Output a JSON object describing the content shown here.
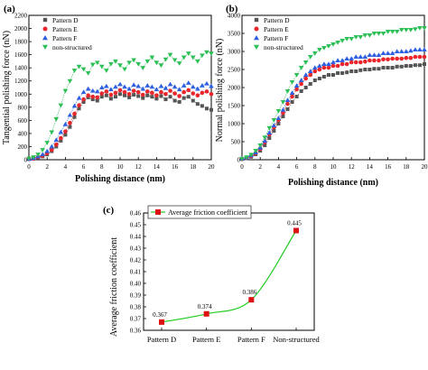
{
  "figure": {
    "panel_labels": [
      "(a)",
      "(b)",
      "(c)"
    ]
  },
  "chart_data": [
    {
      "type": "scatter",
      "panel": "(a)",
      "xlabel": "Polishing distance (nm)",
      "ylabel": "Tangential polishing force (nN)",
      "xlim": [
        0,
        20
      ],
      "ylim": [
        0,
        2200
      ],
      "xticks": [
        0,
        2,
        4,
        6,
        8,
        10,
        12,
        14,
        16,
        18,
        20
      ],
      "yticks": [
        0,
        200,
        400,
        600,
        800,
        1000,
        1200,
        1400,
        1600,
        1800,
        2000,
        2200
      ],
      "legend": "top-left",
      "series": [
        {
          "name": "Pattern D",
          "color": "#555555",
          "marker": "square",
          "x": [
            0,
            0.5,
            1,
            1.5,
            2,
            2.5,
            3,
            3.5,
            4,
            4.5,
            5,
            5.5,
            6,
            6.5,
            7,
            7.5,
            8,
            8.5,
            9,
            9.5,
            10,
            10.5,
            11,
            11.5,
            12,
            12.5,
            13,
            13.5,
            14,
            14.5,
            15,
            15.5,
            16,
            16.5,
            17,
            17.5,
            18,
            18.5,
            19,
            19.5,
            20
          ],
          "y": [
            10,
            15,
            30,
            50,
            80,
            130,
            200,
            290,
            380,
            500,
            650,
            780,
            880,
            950,
            920,
            900,
            960,
            980,
            930,
            960,
            1000,
            980,
            950,
            990,
            970,
            940,
            980,
            960,
            930,
            970,
            920,
            960,
            900,
            880,
            940,
            960,
            900,
            850,
            820,
            780,
            760
          ]
        },
        {
          "name": "Pattern E",
          "color": "#e8262b",
          "marker": "circle",
          "x": [
            0,
            0.5,
            1,
            1.5,
            2,
            2.5,
            3,
            3.5,
            4,
            4.5,
            5,
            5.5,
            6,
            6.5,
            7,
            7.5,
            8,
            8.5,
            9,
            9.5,
            10,
            10.5,
            11,
            11.5,
            12,
            12.5,
            13,
            13.5,
            14,
            14.5,
            15,
            15.5,
            16,
            16.5,
            17,
            17.5,
            18,
            18.5,
            19,
            19.5,
            20
          ],
          "y": [
            10,
            20,
            40,
            60,
            100,
            150,
            230,
            330,
            430,
            560,
            700,
            830,
            920,
            980,
            960,
            950,
            1010,
            1040,
            990,
            1020,
            1060,
            1030,
            1000,
            1050,
            1030,
            990,
            1040,
            1020,
            980,
            1030,
            1000,
            1050,
            1010,
            970,
            1030,
            1060,
            1010,
            980,
            1020,
            1040,
            1000
          ]
        },
        {
          "name": "Pattern F",
          "color": "#2e5fe0",
          "marker": "triangle-up",
          "x": [
            0,
            0.5,
            1,
            1.5,
            2,
            2.5,
            3,
            3.5,
            4,
            4.5,
            5,
            5.5,
            6,
            6.5,
            7,
            7.5,
            8,
            8.5,
            9,
            9.5,
            10,
            10.5,
            11,
            11.5,
            12,
            12.5,
            13,
            13.5,
            14,
            14.5,
            15,
            15.5,
            16,
            16.5,
            17,
            17.5,
            18,
            18.5,
            19,
            19.5,
            20
          ],
          "y": [
            10,
            25,
            50,
            80,
            130,
            200,
            300,
            420,
            540,
            680,
            820,
            940,
            1030,
            1080,
            1050,
            1040,
            1100,
            1120,
            1070,
            1110,
            1150,
            1110,
            1080,
            1140,
            1120,
            1080,
            1130,
            1110,
            1070,
            1120,
            1090,
            1150,
            1110,
            1070,
            1130,
            1170,
            1110,
            1080,
            1130,
            1160,
            1120
          ]
        },
        {
          "name": "non-structured",
          "color": "#2cbf55",
          "marker": "triangle-down",
          "x": [
            0,
            0.5,
            1,
            1.5,
            2,
            2.5,
            3,
            3.5,
            4,
            4.5,
            5,
            5.5,
            6,
            6.5,
            7,
            7.5,
            8,
            8.5,
            9,
            9.5,
            10,
            10.5,
            11,
            11.5,
            12,
            12.5,
            13,
            13.5,
            14,
            14.5,
            15,
            15.5,
            16,
            16.5,
            17,
            17.5,
            18,
            18.5,
            19,
            19.5,
            20
          ],
          "y": [
            20,
            40,
            80,
            150,
            260,
            420,
            620,
            830,
            1050,
            1200,
            1360,
            1420,
            1380,
            1320,
            1450,
            1480,
            1420,
            1360,
            1460,
            1500,
            1440,
            1380,
            1480,
            1520,
            1460,
            1400,
            1500,
            1560,
            1480,
            1440,
            1530,
            1600,
            1520,
            1470,
            1560,
            1620,
            1560,
            1500,
            1590,
            1640,
            1620
          ]
        }
      ]
    },
    {
      "type": "scatter",
      "panel": "(b)",
      "xlabel": "Polishing distance (nm)",
      "ylabel": "Normal polishing force (nN)",
      "xlim": [
        0,
        20
      ],
      "ylim": [
        0,
        4000
      ],
      "xticks": [
        0,
        2,
        4,
        6,
        8,
        10,
        12,
        14,
        16,
        18,
        20
      ],
      "yticks": [
        0,
        500,
        1000,
        1500,
        2000,
        2500,
        3000,
        3500,
        4000
      ],
      "legend": "top-left",
      "series": [
        {
          "name": "Pattern D",
          "color": "#555555",
          "marker": "square",
          "x": [
            0,
            0.5,
            1,
            1.5,
            2,
            2.5,
            3,
            3.5,
            4,
            4.5,
            5,
            5.5,
            6,
            6.5,
            7,
            7.5,
            8,
            8.5,
            9,
            9.5,
            10,
            10.5,
            11,
            11.5,
            12,
            12.5,
            13,
            13.5,
            14,
            14.5,
            15,
            15.5,
            16,
            16.5,
            17,
            17.5,
            18,
            18.5,
            19,
            19.5,
            20
          ],
          "y": [
            20,
            40,
            80,
            150,
            250,
            400,
            600,
            800,
            1000,
            1200,
            1400,
            1600,
            1750,
            1900,
            2000,
            2100,
            2200,
            2250,
            2300,
            2350,
            2350,
            2400,
            2400,
            2420,
            2450,
            2450,
            2480,
            2500,
            2500,
            2520,
            2520,
            2550,
            2550,
            2550,
            2580,
            2580,
            2600,
            2600,
            2620,
            2620,
            2650
          ]
        },
        {
          "name": "Pattern E",
          "color": "#e8262b",
          "marker": "circle",
          "x": [
            0,
            0.5,
            1,
            1.5,
            2,
            2.5,
            3,
            3.5,
            4,
            4.5,
            5,
            5.5,
            6,
            6.5,
            7,
            7.5,
            8,
            8.5,
            9,
            9.5,
            10,
            10.5,
            11,
            11.5,
            12,
            12.5,
            13,
            13.5,
            14,
            14.5,
            15,
            15.5,
            16,
            16.5,
            17,
            17.5,
            18,
            18.5,
            19,
            19.5,
            20
          ],
          "y": [
            20,
            50,
            100,
            180,
            300,
            480,
            700,
            900,
            1100,
            1300,
            1550,
            1750,
            1950,
            2100,
            2250,
            2350,
            2450,
            2500,
            2550,
            2550,
            2600,
            2600,
            2650,
            2650,
            2700,
            2700,
            2700,
            2720,
            2750,
            2750,
            2750,
            2780,
            2780,
            2800,
            2800,
            2800,
            2820,
            2820,
            2850,
            2850,
            2850
          ]
        },
        {
          "name": "Pattern F",
          "color": "#2e5fe0",
          "marker": "triangle-up",
          "x": [
            0,
            0.5,
            1,
            1.5,
            2,
            2.5,
            3,
            3.5,
            4,
            4.5,
            5,
            5.5,
            6,
            6.5,
            7,
            7.5,
            8,
            8.5,
            9,
            9.5,
            10,
            10.5,
            11,
            11.5,
            12,
            12.5,
            13,
            13.5,
            14,
            14.5,
            15,
            15.5,
            16,
            16.5,
            17,
            17.5,
            18,
            18.5,
            19,
            19.5,
            20
          ],
          "y": [
            30,
            60,
            120,
            200,
            330,
            520,
            750,
            950,
            1150,
            1380,
            1650,
            1850,
            2050,
            2200,
            2350,
            2450,
            2550,
            2600,
            2650,
            2650,
            2700,
            2750,
            2750,
            2800,
            2800,
            2850,
            2850,
            2850,
            2900,
            2900,
            2900,
            2950,
            2950,
            2950,
            3000,
            3000,
            3000,
            3020,
            3050,
            3050,
            3050
          ]
        },
        {
          "name": "non-structured",
          "color": "#2cbf55",
          "marker": "triangle-down",
          "x": [
            0,
            0.5,
            1,
            1.5,
            2,
            2.5,
            3,
            3.5,
            4,
            4.5,
            5,
            5.5,
            6,
            6.5,
            7,
            7.5,
            8,
            8.5,
            9,
            9.5,
            10,
            10.5,
            11,
            11.5,
            12,
            12.5,
            13,
            13.5,
            14,
            14.5,
            15,
            15.5,
            16,
            16.5,
            17,
            17.5,
            18,
            18.5,
            19,
            19.5,
            20
          ],
          "y": [
            30,
            70,
            140,
            250,
            400,
            620,
            880,
            1100,
            1350,
            1600,
            1900,
            2150,
            2350,
            2550,
            2700,
            2850,
            2950,
            3050,
            3100,
            3150,
            3200,
            3250,
            3300,
            3350,
            3350,
            3400,
            3400,
            3450,
            3450,
            3500,
            3500,
            3500,
            3550,
            3550,
            3550,
            3600,
            3600,
            3600,
            3620,
            3650,
            3650
          ]
        }
      ]
    },
    {
      "type": "line",
      "panel": "(c)",
      "xlabel": "",
      "ylabel": "Average friction coefficient",
      "categories": [
        "Pattern D",
        "Pattern E",
        "Pattern F",
        "Non-structured"
      ],
      "ylim": [
        0.36,
        0.46
      ],
      "yticks": [
        0.36,
        0.37,
        0.38,
        0.39,
        0.4,
        0.41,
        0.42,
        0.43,
        0.44,
        0.45,
        0.46
      ],
      "ytick_labels": [
        "0.36",
        "0.37",
        "0.38",
        "0.39",
        "0.40",
        "0.41",
        "0.42",
        "0.43",
        "0.44",
        "0.45",
        "0.46"
      ],
      "legend": "top-left",
      "series": [
        {
          "name": "Average friction coefficient",
          "line_color": "#22cc22",
          "marker_color": "#dd1111",
          "values": [
            0.367,
            0.374,
            0.386,
            0.445
          ],
          "labels": [
            "0.367",
            "0.374",
            "0.386",
            "0.445"
          ]
        }
      ]
    }
  ]
}
